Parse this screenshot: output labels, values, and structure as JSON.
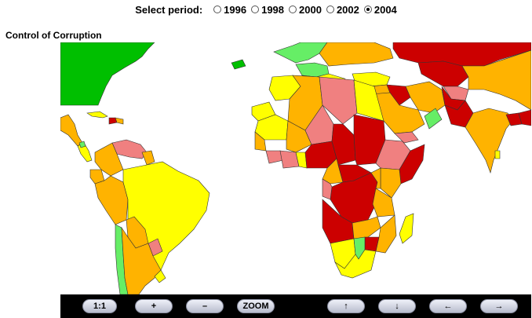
{
  "period": {
    "label": "Select period:",
    "options": [
      {
        "label": "1996",
        "checked": false
      },
      {
        "label": "1998",
        "checked": false
      },
      {
        "label": "2000",
        "checked": false
      },
      {
        "label": "2002",
        "checked": false
      },
      {
        "label": "2004",
        "checked": true
      }
    ]
  },
  "map": {
    "title": "Control of Corruption",
    "colors": {
      "dark_green": "#00bf00",
      "light_green": "#66ee66",
      "yellow": "#ffff00",
      "orange": "#ffb300",
      "pink": "#f08080",
      "red": "#cc0000"
    }
  },
  "toolbar": {
    "reset_label": "1:1",
    "zoom_in_label": "+",
    "zoom_out_label": "–",
    "zoom_label": "ZOOM",
    "up_label": "↑",
    "down_label": "↓",
    "left_label": "←",
    "right_label": "→"
  }
}
